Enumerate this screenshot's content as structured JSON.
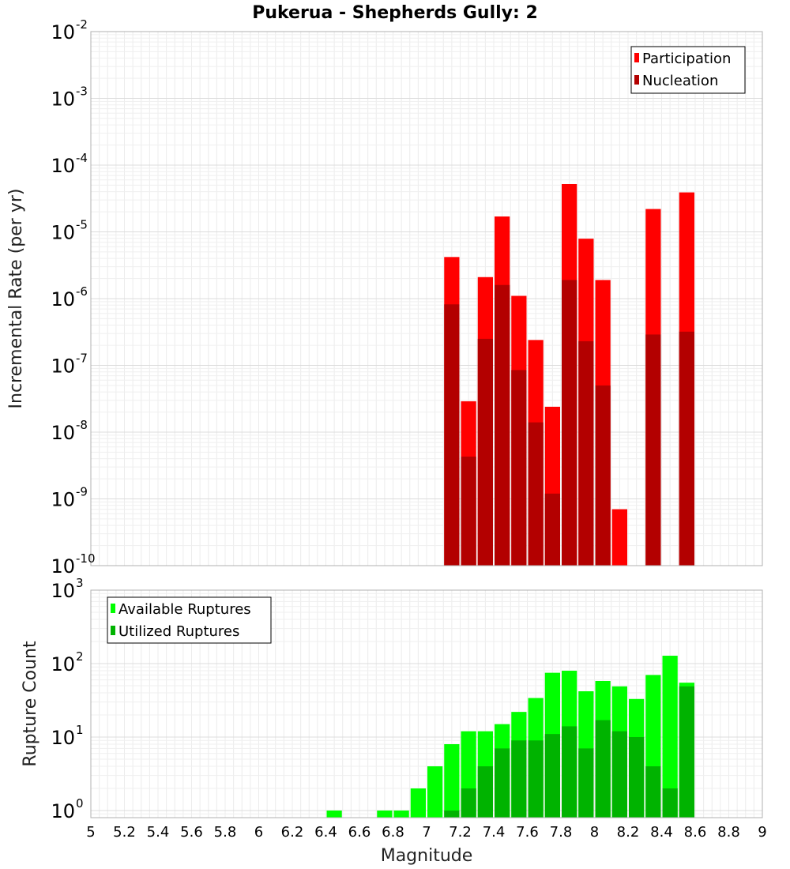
{
  "chart_data": [
    {
      "type": "bar",
      "title": "Pukerua - Shepherds Gully: 2",
      "xlabel": "Magnitude",
      "ylabel": "Incremental Rate (per yr)",
      "yscale": "log",
      "ylim": [
        1e-10,
        0.01
      ],
      "xlim": [
        5,
        9
      ],
      "grid": true,
      "legend_position": "top-right",
      "colors": {
        "participation": "#ff0000",
        "nucleation": "#b30000"
      },
      "series": [
        {
          "name": "Participation",
          "x": [
            7.15,
            7.25,
            7.35,
            7.45,
            7.55,
            7.65,
            7.75,
            7.85,
            7.95,
            8.05,
            8.15,
            8.35,
            8.55
          ],
          "values": [
            4.2e-06,
            2.9e-08,
            2.1e-06,
            1.7e-05,
            1.1e-06,
            2.4e-07,
            2.4e-08,
            5.2e-05,
            7.9e-06,
            1.9e-06,
            7e-10,
            2.2e-05,
            3.9e-05
          ]
        },
        {
          "name": "Nucleation",
          "x": [
            7.15,
            7.25,
            7.35,
            7.45,
            7.55,
            7.65,
            7.75,
            7.85,
            7.95,
            8.05,
            8.35,
            8.55
          ],
          "values": [
            8.2e-07,
            4.3e-09,
            2.5e-07,
            1.6e-06,
            8.5e-08,
            1.4e-08,
            1.2e-09,
            1.9e-06,
            2.3e-07,
            5e-08,
            2.9e-07,
            3.2e-07
          ]
        }
      ]
    },
    {
      "type": "bar",
      "xlabel": "Magnitude",
      "ylabel": "Rupture Count",
      "yscale": "log",
      "ylim": [
        0.8,
        1000
      ],
      "xlim": [
        5,
        9
      ],
      "grid": true,
      "legend_position": "top-left",
      "colors": {
        "available": "#00ff00",
        "utilized": "#00b300"
      },
      "series": [
        {
          "name": "Available Ruptures",
          "x": [
            6.45,
            6.75,
            6.85,
            6.95,
            7.05,
            7.15,
            7.25,
            7.35,
            7.45,
            7.55,
            7.65,
            7.75,
            7.85,
            7.95,
            8.05,
            8.15,
            8.25,
            8.35,
            8.45,
            8.55
          ],
          "values": [
            1,
            1,
            1,
            2,
            4,
            8,
            12,
            12,
            15,
            22,
            34,
            75,
            80,
            42,
            58,
            49,
            33,
            70,
            128,
            55
          ]
        },
        {
          "name": "Utilized Ruptures",
          "x": [
            7.15,
            7.25,
            7.35,
            7.45,
            7.55,
            7.65,
            7.75,
            7.85,
            7.95,
            8.05,
            8.15,
            8.25,
            8.35,
            8.45,
            8.55
          ],
          "values": [
            1,
            2,
            4,
            7,
            9,
            9,
            11,
            14,
            7,
            17,
            12,
            10,
            4,
            2,
            49
          ]
        }
      ]
    }
  ],
  "x_ticks": [
    "5",
    "5.2",
    "5.4",
    "5.6",
    "5.8",
    "6",
    "6.2",
    "6.4",
    "6.6",
    "6.8",
    "7",
    "7.2",
    "7.4",
    "7.6",
    "7.8",
    "8",
    "8.2",
    "8.4",
    "8.6",
    "8.8",
    "9"
  ],
  "top_y_ticks": [
    {
      "base": "10",
      "exp": "-2"
    },
    {
      "base": "10",
      "exp": "-3"
    },
    {
      "base": "10",
      "exp": "-4"
    },
    {
      "base": "10",
      "exp": "-5"
    },
    {
      "base": "10",
      "exp": "-6"
    },
    {
      "base": "10",
      "exp": "-7"
    },
    {
      "base": "10",
      "exp": "-8"
    },
    {
      "base": "10",
      "exp": "-9"
    },
    {
      "base": "10",
      "exp": "-10"
    }
  ],
  "bottom_y_ticks": [
    {
      "base": "10",
      "exp": "3"
    },
    {
      "base": "10",
      "exp": "2"
    },
    {
      "base": "10",
      "exp": "1"
    },
    {
      "base": "10",
      "exp": "0"
    }
  ]
}
